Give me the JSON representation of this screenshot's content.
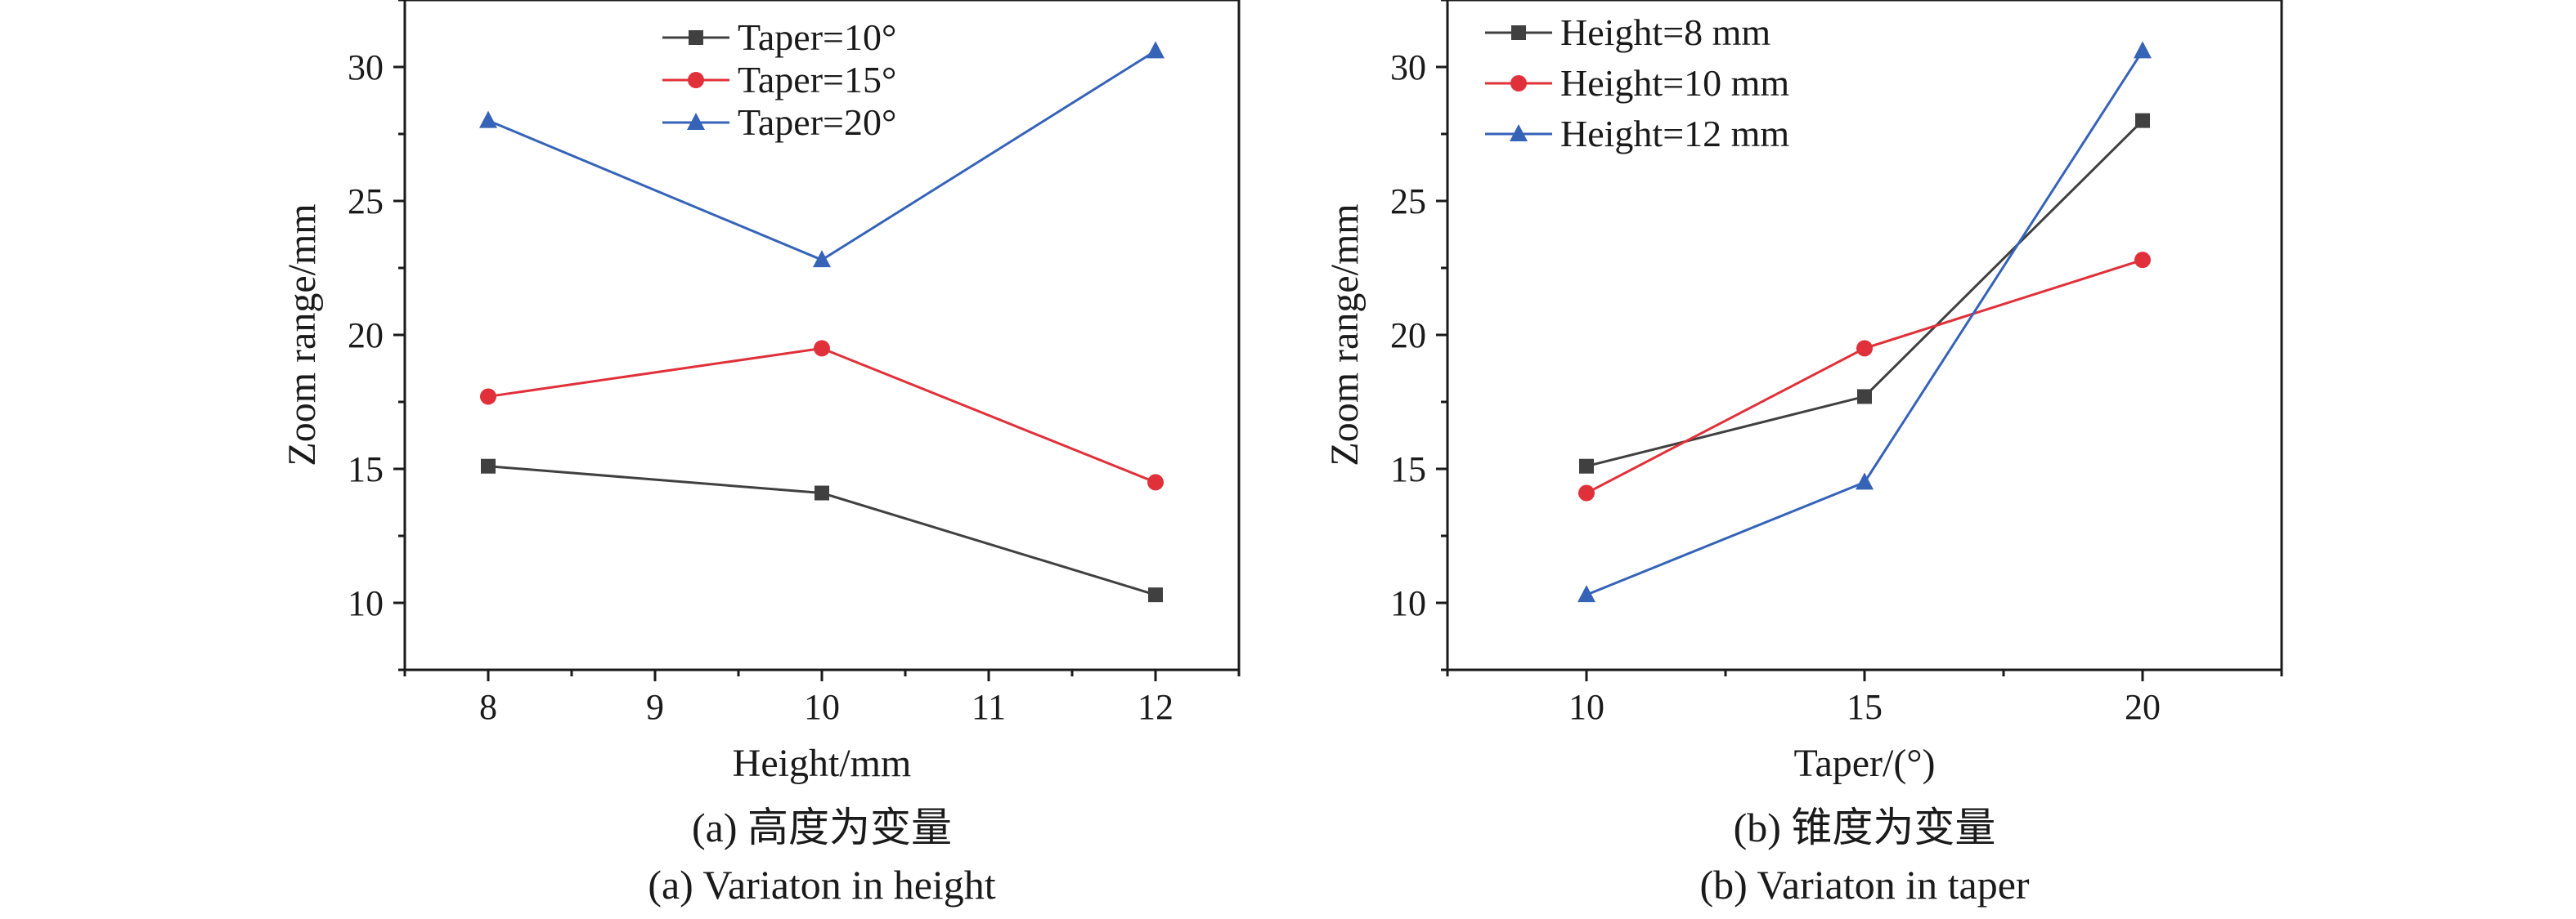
{
  "chart_data": [
    {
      "type": "line",
      "caption_cn": "(a) 高度为变量",
      "caption_en": "(a) Variaton in height",
      "xlabel": "Height/mm",
      "ylabel": "Zoom range/mm",
      "x_ticks": [
        8,
        9,
        10,
        11,
        12
      ],
      "y_ticks": [
        10,
        15,
        20,
        25,
        30
      ],
      "xlim": [
        7.5,
        12.5
      ],
      "ylim": [
        7.5,
        32.5
      ],
      "legend_position": "top",
      "series": [
        {
          "name": "Taper=10°",
          "marker": "square",
          "color": "#404040",
          "x": [
            8,
            10,
            12
          ],
          "y": [
            15.1,
            14.1,
            10.3
          ]
        },
        {
          "name": "Taper=15°",
          "marker": "circle",
          "color": "#e0313a",
          "x": [
            8,
            10,
            12
          ],
          "y": [
            17.7,
            19.5,
            14.5
          ]
        },
        {
          "name": "Taper=20°",
          "marker": "triangle",
          "color": "#3563b8",
          "x": [
            8,
            10,
            12
          ],
          "y": [
            28.0,
            22.8,
            30.6
          ]
        }
      ]
    },
    {
      "type": "line",
      "caption_cn": "(b) 锥度为变量",
      "caption_en": "(b) Variaton in taper",
      "xlabel": "Taper/(°)",
      "ylabel": "Zoom range/mm",
      "x_ticks": [
        10,
        15,
        20
      ],
      "y_ticks": [
        10,
        15,
        20,
        25,
        30
      ],
      "xlim": [
        7.5,
        22.5
      ],
      "ylim": [
        7.5,
        32.5
      ],
      "legend_position": "top-left",
      "series": [
        {
          "name": "Height=8 mm",
          "marker": "square",
          "color": "#404040",
          "x": [
            10,
            15,
            20
          ],
          "y": [
            15.1,
            17.7,
            28.0
          ]
        },
        {
          "name": "Height=10 mm",
          "marker": "circle",
          "color": "#e0313a",
          "x": [
            10,
            15,
            20
          ],
          "y": [
            14.1,
            19.5,
            22.8
          ]
        },
        {
          "name": "Height=12 mm",
          "marker": "triangle",
          "color": "#3563b8",
          "x": [
            10,
            15,
            20
          ],
          "y": [
            10.3,
            14.5,
            30.6
          ]
        }
      ]
    }
  ]
}
